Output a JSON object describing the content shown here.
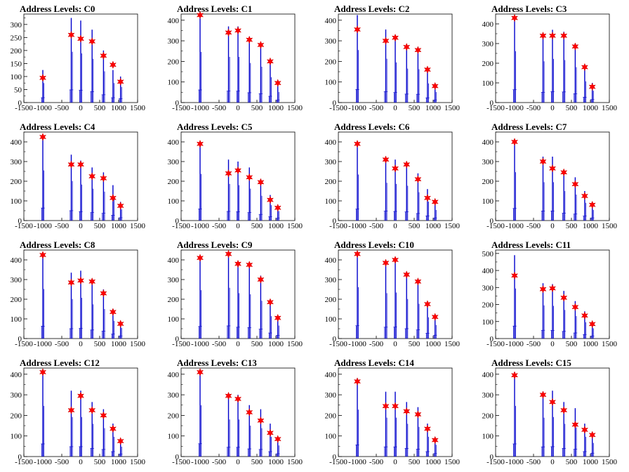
{
  "chart_data": [
    {
      "type": "bar",
      "title": "Address Levels: C0",
      "xlim": [
        -1500,
        1500
      ],
      "ylim": [
        0,
        340
      ],
      "yticks": [
        0,
        50,
        100,
        150,
        200,
        250,
        300
      ],
      "xticks": [
        -1500,
        -1000,
        -500,
        0,
        500,
        1000,
        1500
      ],
      "xtick_labels": [
        "-1500",
        "-1000",
        "-500",
        "0",
        "500",
        "1000",
        "1500"
      ],
      "x": [
        -1000,
        -250,
        0,
        300,
        600,
        850,
        1050
      ],
      "peak_heights": [
        125,
        325,
        315,
        280,
        200,
        125,
        100
      ],
      "star_values": [
        95,
        260,
        245,
        235,
        180,
        145,
        80
      ]
    },
    {
      "type": "bar",
      "title": "Address Levels: C1",
      "xlim": [
        -1500,
        1500
      ],
      "ylim": [
        0,
        430
      ],
      "yticks": [
        0,
        100,
        200,
        300,
        400
      ],
      "xticks": [
        -1500,
        -1000,
        -500,
        0,
        500,
        1000,
        1500
      ],
      "xtick_labels": [
        "-1500",
        "-1000",
        "-500",
        "0",
        "500",
        "1000",
        "1500"
      ],
      "x": [
        -1000,
        -250,
        0,
        300,
        600,
        850,
        1050
      ],
      "peak_heights": [
        410,
        370,
        370,
        320,
        290,
        205,
        85
      ],
      "star_values": [
        425,
        340,
        350,
        305,
        280,
        200,
        95
      ]
    },
    {
      "type": "bar",
      "title": "Address Levels: C2",
      "xlim": [
        -1500,
        1500
      ],
      "ylim": [
        0,
        430
      ],
      "yticks": [
        0,
        100,
        200,
        300,
        400
      ],
      "xticks": [
        -1500,
        -1000,
        -500,
        0,
        500,
        1000,
        1500
      ],
      "xtick_labels": [
        "-1500",
        "-1000",
        "-500",
        "0",
        "500",
        "1000",
        "1500"
      ],
      "x": [
        -1000,
        -250,
        0,
        300,
        600,
        850,
        1050
      ],
      "peak_heights": [
        425,
        355,
        325,
        275,
        270,
        155,
        85
      ],
      "star_values": [
        355,
        300,
        315,
        270,
        255,
        160,
        80
      ]
    },
    {
      "type": "bar",
      "title": "Address Levels: C3",
      "xlim": [
        -1500,
        1500
      ],
      "ylim": [
        0,
        450
      ],
      "yticks": [
        0,
        100,
        200,
        300,
        400
      ],
      "xticks": [
        -1500,
        -1000,
        -500,
        0,
        500,
        1000,
        1500
      ],
      "xtick_labels": [
        "-1500",
        "-1000",
        "-500",
        "0",
        "500",
        "1000",
        "1500"
      ],
      "x": [
        -1000,
        -250,
        0,
        300,
        600,
        850,
        1050
      ],
      "peak_heights": [
        435,
        350,
        370,
        360,
        300,
        180,
        100
      ],
      "star_values": [
        430,
        340,
        340,
        340,
        285,
        180,
        80
      ]
    },
    {
      "type": "bar",
      "title": "Address Levels: C4",
      "xlim": [
        -1500,
        1500
      ],
      "ylim": [
        0,
        450
      ],
      "yticks": [
        0,
        100,
        200,
        300,
        400
      ],
      "xticks": [
        -1500,
        -1000,
        -500,
        0,
        500,
        1000,
        1500
      ],
      "xtick_labels": [
        "-1500",
        "-1000",
        "-500",
        "0",
        "500",
        "1000",
        "1500"
      ],
      "x": [
        -1000,
        -250,
        0,
        300,
        600,
        850,
        1050
      ],
      "peak_heights": [
        425,
        335,
        305,
        270,
        245,
        180,
        95
      ],
      "star_values": [
        425,
        285,
        285,
        225,
        215,
        115,
        75
      ]
    },
    {
      "type": "bar",
      "title": "Address Levels: C5",
      "xlim": [
        -1500,
        1500
      ],
      "ylim": [
        0,
        450
      ],
      "yticks": [
        0,
        100,
        200,
        300,
        400
      ],
      "xticks": [
        -1500,
        -1000,
        -500,
        0,
        500,
        1000,
        1500
      ],
      "xtick_labels": [
        "-1500",
        "-1000",
        "-500",
        "0",
        "500",
        "1000",
        "1500"
      ],
      "x": [
        -1000,
        -250,
        0,
        300,
        600,
        850,
        1050
      ],
      "peak_heights": [
        395,
        310,
        300,
        270,
        210,
        130,
        80
      ],
      "star_values": [
        390,
        240,
        255,
        220,
        195,
        105,
        65
      ]
    },
    {
      "type": "bar",
      "title": "Address Levels: C6",
      "xlim": [
        -1500,
        1500
      ],
      "ylim": [
        0,
        450
      ],
      "yticks": [
        0,
        100,
        200,
        300,
        400
      ],
      "xticks": [
        -1500,
        -1000,
        -500,
        0,
        500,
        1000,
        1500
      ],
      "xtick_labels": [
        "-1500",
        "-1000",
        "-500",
        "0",
        "500",
        "1000",
        "1500"
      ],
      "x": [
        -1000,
        -250,
        0,
        300,
        600,
        850,
        1050
      ],
      "peak_heights": [
        390,
        320,
        310,
        295,
        240,
        160,
        90
      ],
      "star_values": [
        390,
        310,
        265,
        285,
        210,
        115,
        95
      ]
    },
    {
      "type": "bar",
      "title": "Address Levels: C7",
      "xlim": [
        -1500,
        1500
      ],
      "ylim": [
        0,
        450
      ],
      "yticks": [
        0,
        100,
        200,
        300,
        400
      ],
      "xticks": [
        -1500,
        -1000,
        -500,
        0,
        500,
        1000,
        1500
      ],
      "xtick_labels": [
        "-1500",
        "-1000",
        "-500",
        "0",
        "500",
        "1000",
        "1500"
      ],
      "x": [
        -1000,
        -250,
        0,
        300,
        600,
        850,
        1050
      ],
      "peak_heights": [
        410,
        325,
        325,
        250,
        220,
        150,
        90
      ],
      "star_values": [
        400,
        300,
        265,
        245,
        185,
        125,
        80
      ]
    },
    {
      "type": "bar",
      "title": "Address Levels: C8",
      "xlim": [
        -1500,
        1500
      ],
      "ylim": [
        0,
        450
      ],
      "yticks": [
        0,
        100,
        200,
        300,
        400
      ],
      "xticks": [
        -1500,
        -1000,
        -500,
        0,
        500,
        1000,
        1500
      ],
      "xtick_labels": [
        "-1500",
        "-1000",
        "-500",
        "0",
        "500",
        "1000",
        "1500"
      ],
      "x": [
        -1000,
        -250,
        0,
        300,
        600,
        850,
        1050
      ],
      "peak_heights": [
        420,
        335,
        345,
        290,
        250,
        150,
        90
      ],
      "star_values": [
        425,
        285,
        295,
        290,
        230,
        135,
        75
      ]
    },
    {
      "type": "bar",
      "title": "Address Levels: C9",
      "xlim": [
        -1500,
        1500
      ],
      "ylim": [
        0,
        450
      ],
      "yticks": [
        0,
        100,
        200,
        300,
        400
      ],
      "xticks": [
        -1500,
        -1000,
        -500,
        0,
        500,
        1000,
        1500
      ],
      "xtick_labels": [
        "-1500",
        "-1000",
        "-500",
        "0",
        "500",
        "1000",
        "1500"
      ],
      "x": [
        -1000,
        -250,
        0,
        300,
        600,
        850,
        1050
      ],
      "peak_heights": [
        410,
        430,
        385,
        375,
        320,
        190,
        110
      ],
      "star_values": [
        410,
        430,
        380,
        375,
        300,
        185,
        105
      ]
    },
    {
      "type": "bar",
      "title": "Address Levels: C10",
      "xlim": [
        -1500,
        1500
      ],
      "ylim": [
        0,
        450
      ],
      "yticks": [
        0,
        100,
        200,
        300,
        400
      ],
      "xticks": [
        -1500,
        -1000,
        -500,
        0,
        500,
        1000,
        1500
      ],
      "xtick_labels": [
        "-1500",
        "-1000",
        "-500",
        "0",
        "500",
        "1000",
        "1500"
      ],
      "x": [
        -1000,
        -250,
        0,
        300,
        600,
        850,
        1050
      ],
      "peak_heights": [
        435,
        385,
        390,
        335,
        295,
        180,
        115
      ],
      "star_values": [
        430,
        385,
        400,
        325,
        290,
        175,
        110
      ]
    },
    {
      "type": "bar",
      "title": "Address Levels: C11",
      "xlim": [
        -1500,
        1500
      ],
      "ylim": [
        0,
        520
      ],
      "yticks": [
        0,
        100,
        200,
        300,
        400,
        500
      ],
      "xticks": [
        -1500,
        -1000,
        -500,
        0,
        500,
        1000,
        1500
      ],
      "xtick_labels": [
        "-1500",
        "-1000",
        "-500",
        "0",
        "500",
        "1000",
        "1500"
      ],
      "x": [
        -1000,
        -250,
        0,
        300,
        600,
        850,
        1050
      ],
      "peak_heights": [
        490,
        325,
        320,
        280,
        220,
        160,
        100
      ],
      "star_values": [
        370,
        290,
        295,
        240,
        185,
        135,
        85
      ]
    },
    {
      "type": "bar",
      "title": "Address Levels: C12",
      "xlim": [
        -1500,
        1500
      ],
      "ylim": [
        0,
        430
      ],
      "yticks": [
        0,
        100,
        200,
        300,
        400
      ],
      "xticks": [
        -1500,
        -1000,
        -500,
        0,
        500,
        1000,
        1500
      ],
      "xtick_labels": [
        "-1500",
        "-1000",
        "-500",
        "0",
        "500",
        "1000",
        "1500"
      ],
      "x": [
        -1000,
        -250,
        0,
        300,
        600,
        850,
        1050
      ],
      "peak_heights": [
        410,
        320,
        320,
        265,
        230,
        160,
        80
      ],
      "star_values": [
        410,
        225,
        295,
        225,
        200,
        135,
        75
      ]
    },
    {
      "type": "bar",
      "title": "Address Levels: C13",
      "xlim": [
        -1500,
        1500
      ],
      "ylim": [
        0,
        430
      ],
      "yticks": [
        0,
        100,
        200,
        300,
        400
      ],
      "xticks": [
        -1500,
        -1000,
        -500,
        0,
        500,
        1000,
        1500
      ],
      "xtick_labels": [
        "-1500",
        "-1000",
        "-500",
        "0",
        "500",
        "1000",
        "1500"
      ],
      "x": [
        -1000,
        -250,
        0,
        300,
        600,
        850,
        1050
      ],
      "peak_heights": [
        415,
        300,
        300,
        250,
        230,
        160,
        90
      ],
      "star_values": [
        410,
        295,
        280,
        215,
        175,
        115,
        85
      ]
    },
    {
      "type": "bar",
      "title": "Address Levels: C14",
      "xlim": [
        -1500,
        1500
      ],
      "ylim": [
        0,
        430
      ],
      "yticks": [
        0,
        100,
        200,
        300,
        400
      ],
      "xticks": [
        -1500,
        -1000,
        -500,
        0,
        500,
        1000,
        1500
      ],
      "xtick_labels": [
        "-1500",
        "-1000",
        "-500",
        "0",
        "500",
        "1000",
        "1500"
      ],
      "x": [
        -1000,
        -250,
        0,
        300,
        600,
        850,
        1050
      ],
      "peak_heights": [
        380,
        315,
        315,
        265,
        240,
        160,
        95
      ],
      "star_values": [
        365,
        245,
        245,
        220,
        205,
        135,
        80
      ]
    },
    {
      "type": "bar",
      "title": "Address Levels: C15",
      "xlim": [
        -1500,
        1500
      ],
      "ylim": [
        0,
        430
      ],
      "yticks": [
        0,
        100,
        200,
        300,
        400
      ],
      "xticks": [
        -1500,
        -1000,
        -500,
        0,
        500,
        1000,
        1500
      ],
      "xtick_labels": [
        "-1500",
        "-1000",
        "-500",
        "0",
        "500",
        "1000",
        "1500"
      ],
      "x": [
        -1000,
        -250,
        0,
        300,
        600,
        850,
        1050
      ],
      "peak_heights": [
        410,
        315,
        320,
        265,
        235,
        160,
        110
      ],
      "star_values": [
        395,
        300,
        265,
        225,
        155,
        130,
        105
      ]
    }
  ],
  "colors": {
    "histogram": "#0000cc",
    "marker": "#ff0000",
    "marker_outline": "#cc0000",
    "axis": "#000000",
    "background": "#ffffff"
  },
  "icons": {
    "marker": "star-marker"
  }
}
